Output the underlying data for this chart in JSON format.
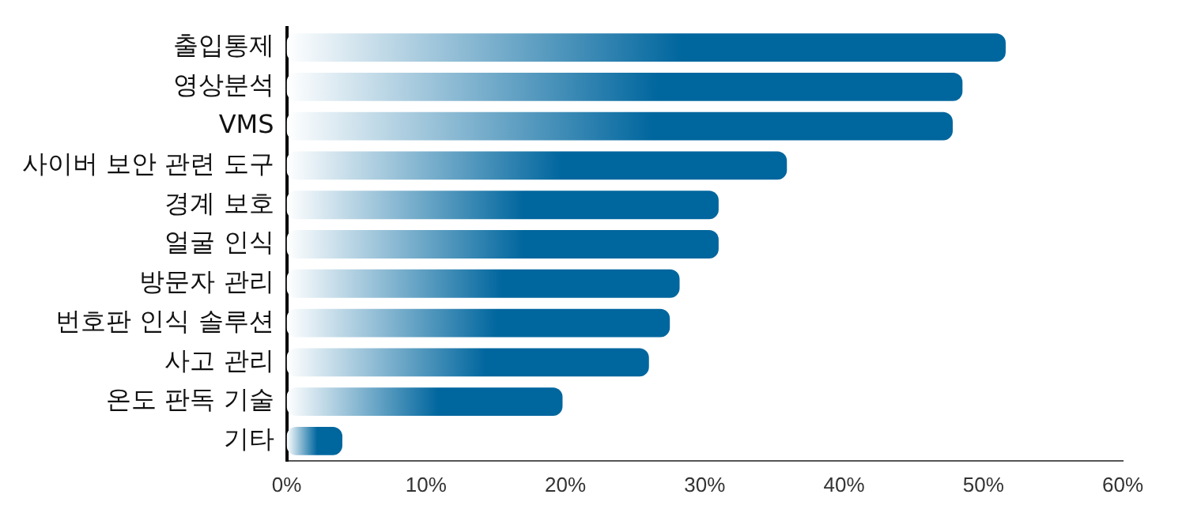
{
  "chart_data": {
    "type": "bar",
    "orientation": "horizontal",
    "categories": [
      "출입통제",
      "영상분석",
      "VMS",
      "사이버 보안 관련 도구",
      "경계 보호",
      "얼굴 인식",
      "방문자 관리",
      "번호판 인식 솔루션",
      "사고 관리",
      "온도 판독 기술",
      "기타"
    ],
    "values": [
      51.6,
      48.5,
      47.8,
      35.9,
      31.0,
      31.0,
      28.2,
      27.5,
      26.0,
      19.8,
      4.0
    ],
    "color": "#00669e",
    "xlim": [
      0,
      60
    ],
    "xticks": [
      {
        "value": 0,
        "label": "0%"
      },
      {
        "value": 10,
        "label": "10%"
      },
      {
        "value": 20,
        "label": "20%"
      },
      {
        "value": 30,
        "label": "30%"
      },
      {
        "value": 40,
        "label": "40%"
      },
      {
        "value": 50,
        "label": "50%"
      },
      {
        "value": 60,
        "label": "60%"
      }
    ],
    "grid": false,
    "legend": false
  }
}
